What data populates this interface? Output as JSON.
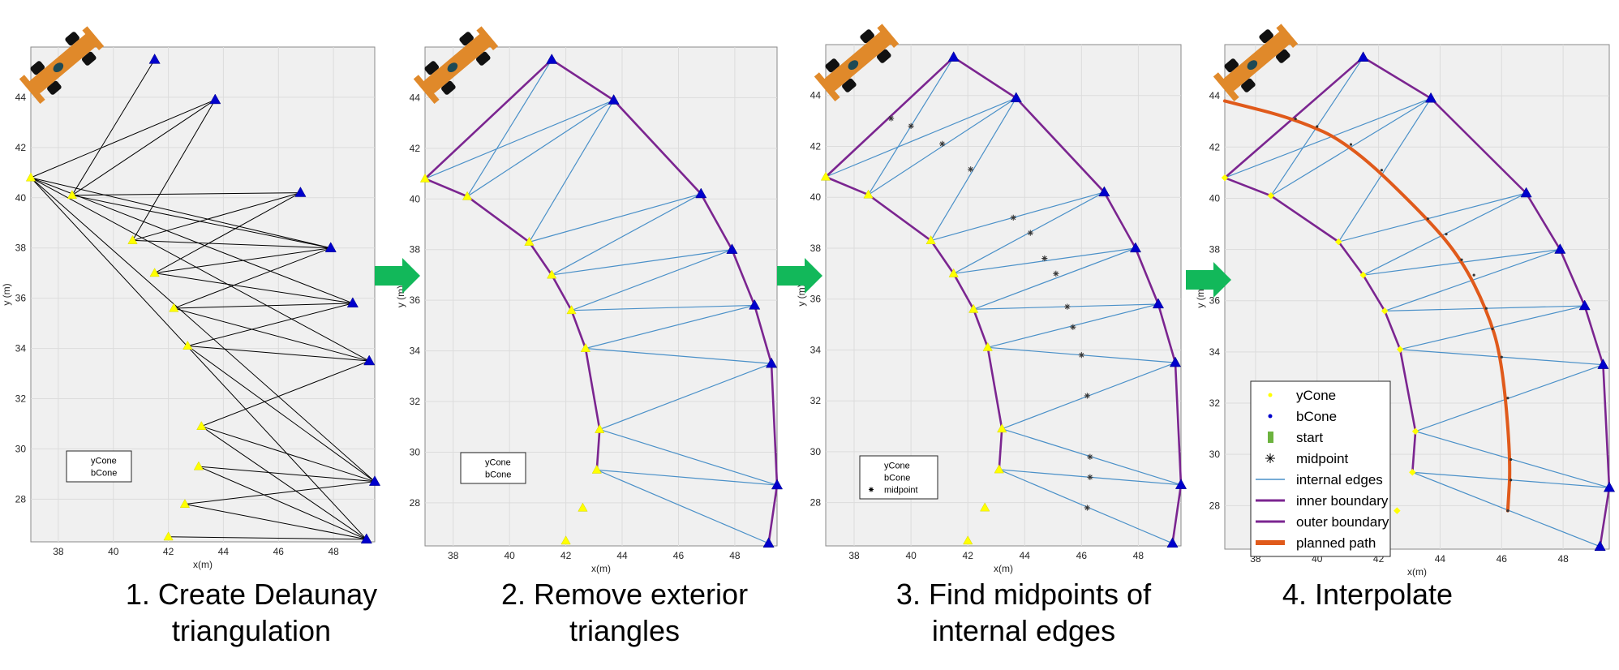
{
  "x_axis": {
    "label": "x(m)",
    "ticks": [
      38,
      40,
      42,
      44,
      46,
      48
    ]
  },
  "y_axis": {
    "label": "y (m)",
    "ticks": [
      28,
      30,
      32,
      34,
      36,
      38,
      40,
      42,
      44
    ]
  },
  "xlim": [
    37,
    49.5
  ],
  "ylim": [
    26.3,
    46
  ],
  "yellow_cones": [
    [
      37.0,
      40.8
    ],
    [
      38.5,
      40.1
    ],
    [
      40.7,
      38.3
    ],
    [
      41.5,
      37.0
    ],
    [
      42.2,
      35.6
    ],
    [
      42.7,
      34.1
    ],
    [
      43.2,
      30.9
    ],
    [
      43.1,
      29.3
    ],
    [
      42.6,
      27.8
    ],
    [
      42.0,
      26.5
    ]
  ],
  "blue_cones": [
    [
      41.5,
      45.5
    ],
    [
      43.7,
      43.9
    ],
    [
      46.8,
      40.2
    ],
    [
      47.9,
      38.0
    ],
    [
      48.7,
      35.8
    ],
    [
      49.3,
      33.5
    ],
    [
      49.5,
      28.7
    ],
    [
      49.2,
      26.4
    ]
  ],
  "midpoints": [
    [
      39.3,
      43.1
    ],
    [
      40.0,
      42.8
    ],
    [
      41.1,
      42.1
    ],
    [
      42.1,
      41.1
    ],
    [
      43.6,
      39.2
    ],
    [
      44.2,
      38.6
    ],
    [
      44.7,
      37.6
    ],
    [
      45.1,
      37.0
    ],
    [
      45.5,
      35.7
    ],
    [
      45.7,
      34.9
    ],
    [
      46.0,
      33.8
    ],
    [
      46.2,
      32.2
    ],
    [
      46.3,
      29.8
    ],
    [
      46.3,
      29.0
    ],
    [
      46.2,
      27.8
    ]
  ],
  "colors": {
    "ycone": "#ffff00",
    "bcone": "#0000cc",
    "edge": "#000000",
    "internal": "#4a90c8",
    "boundary": "#7b2590",
    "path": "#e05a1b",
    "arrow": "#12b85a",
    "midpoint": "#333333",
    "axes_bg": "#f0f0f0",
    "car_body": "#e0892a",
    "start": "#6cb33e"
  },
  "icons": {
    "car": "race-car-icon",
    "arrow": "right-arrow-icon"
  },
  "panels": [
    {
      "caption": [
        "1. Create Delaunay",
        "triangulation"
      ],
      "legend": [
        "yCone",
        "bCone"
      ]
    },
    {
      "caption": [
        "2. Remove exterior",
        "triangles"
      ],
      "legend": [
        "yCone",
        "bCone"
      ]
    },
    {
      "caption": [
        "3. Find midpoints of",
        "internal edges"
      ],
      "legend": [
        "yCone",
        "bCone",
        "midpoint"
      ]
    },
    {
      "caption": [
        "4. Interpolate"
      ],
      "legend": [
        "yCone",
        "bCone",
        "start",
        "midpoint",
        "internal edges",
        "inner boundary",
        "outer boundary",
        "planned path"
      ]
    }
  ]
}
